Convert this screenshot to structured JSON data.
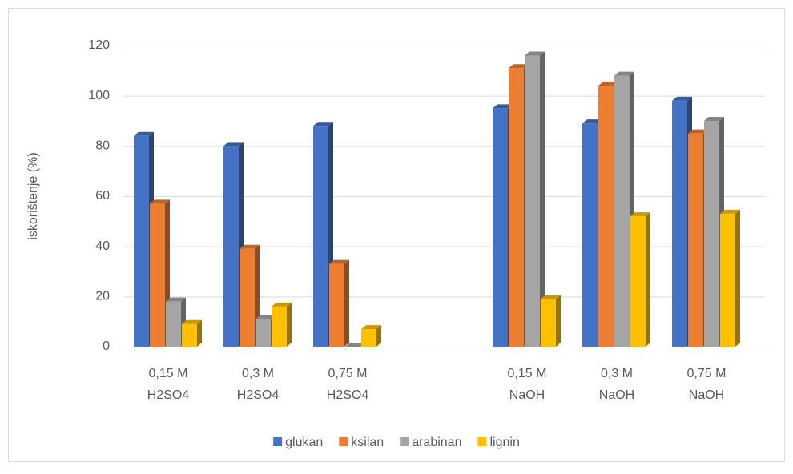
{
  "chart_data": {
    "type": "bar",
    "y_axis_label": "iskorištenje (%)",
    "categories": [
      [
        "0,15 M",
        "H2SO4"
      ],
      [
        "0,3 M",
        "H2SO4"
      ],
      [
        "0,75 M",
        "H2SO4"
      ],
      null,
      [
        "0,15 M",
        "NaOH"
      ],
      [
        "0,3 M",
        "NaOH"
      ],
      [
        "0,75 M",
        "NaOH"
      ]
    ],
    "series": [
      {
        "name": "glukan",
        "color": "#4472c4",
        "values": [
          84,
          80,
          88,
          null,
          95,
          89,
          98
        ]
      },
      {
        "name": "ksilan",
        "color": "#ed7d31",
        "values": [
          57,
          39,
          33,
          null,
          111,
          104,
          85
        ]
      },
      {
        "name": "arabinan",
        "color": "#a5a5a5",
        "values": [
          18,
          11,
          0,
          null,
          116,
          108,
          90
        ]
      },
      {
        "name": "lignin",
        "color": "#ffc000",
        "values": [
          9,
          16,
          7,
          null,
          19,
          52,
          53
        ]
      }
    ],
    "ylim": [
      0,
      120
    ],
    "yticks": [
      0,
      20,
      40,
      60,
      80,
      100,
      120
    ],
    "grid": true,
    "legend": "bottom"
  }
}
